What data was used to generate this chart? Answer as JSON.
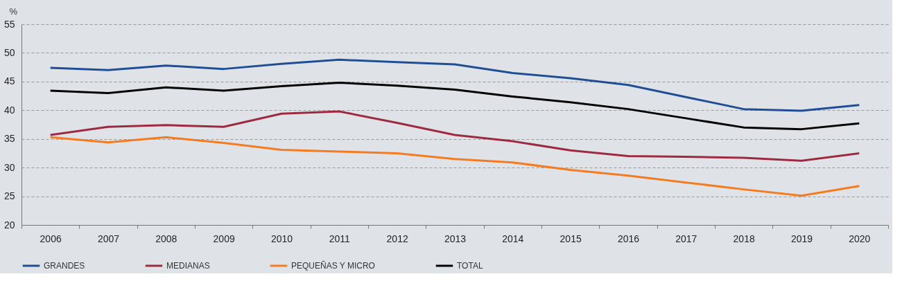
{
  "chart_data": {
    "type": "line",
    "ylabel": "%",
    "categories": [
      "2006",
      "2007",
      "2008",
      "2009",
      "2010",
      "2011",
      "2012",
      "2013",
      "2014",
      "2015",
      "2016",
      "2017",
      "2018",
      "2019",
      "2020"
    ],
    "series": [
      {
        "name": "GRANDES",
        "color": "#1f4e96",
        "values": [
          47.4,
          47.0,
          47.8,
          47.2,
          48.1,
          48.8,
          48.4,
          48.0,
          46.5,
          45.6,
          44.4,
          42.3,
          40.2,
          39.9,
          40.9
        ]
      },
      {
        "name": "MEDIANAS",
        "color": "#9e2a40",
        "values": [
          35.7,
          37.1,
          37.4,
          37.1,
          39.4,
          39.8,
          37.8,
          35.7,
          34.6,
          33.0,
          32.0,
          31.9,
          31.7,
          31.2,
          32.5
        ]
      },
      {
        "name": "PEQUEÑAS Y MICRO",
        "color": "#f47b20",
        "values": [
          35.3,
          34.4,
          35.3,
          34.3,
          33.1,
          32.8,
          32.5,
          31.5,
          30.9,
          29.6,
          28.6,
          27.4,
          26.2,
          25.1,
          26.8
        ]
      },
      {
        "name": "TOTAL",
        "color": "#000000",
        "values": [
          43.4,
          43.0,
          44.0,
          43.4,
          44.2,
          44.8,
          44.3,
          43.6,
          42.4,
          41.4,
          40.2,
          38.6,
          37.0,
          36.7,
          37.7
        ]
      }
    ],
    "ylim": [
      20,
      55
    ],
    "yticks": [
      20,
      25,
      30,
      35,
      40,
      45,
      50,
      55
    ],
    "grid": "y",
    "legend": "bottom",
    "marker": "none",
    "line_style": "solid"
  }
}
